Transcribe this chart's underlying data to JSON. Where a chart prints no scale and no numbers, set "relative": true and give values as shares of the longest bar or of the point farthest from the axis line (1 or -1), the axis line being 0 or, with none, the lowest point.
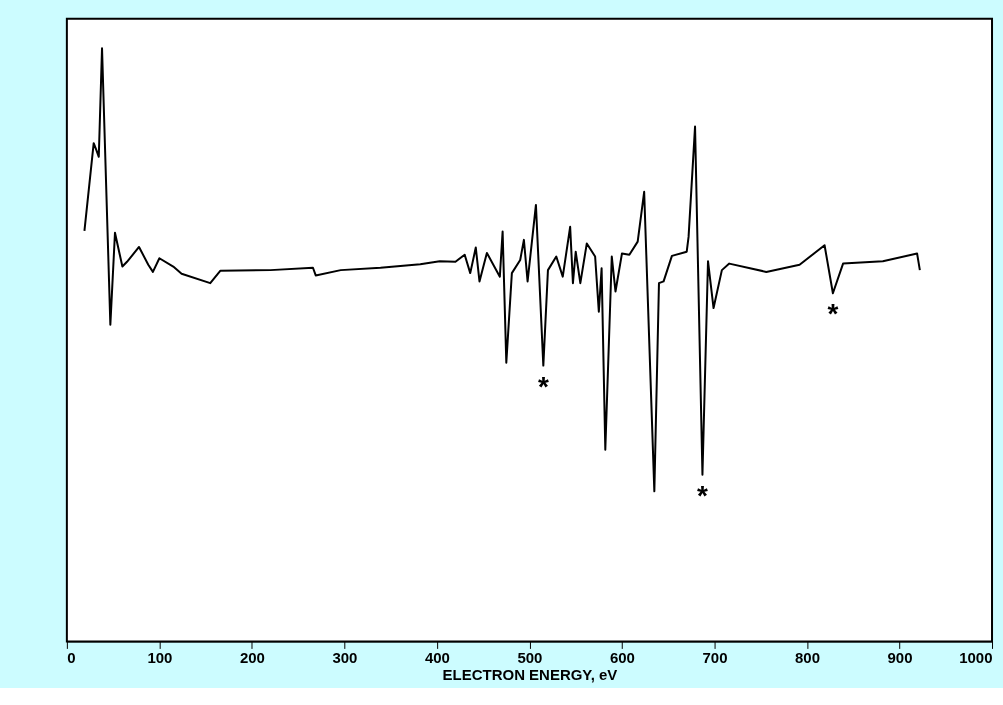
{
  "chart_data": {
    "type": "line",
    "relative": true,
    "xlabel": "ELECTRON ENERGY, eV",
    "xlim": [
      0,
      1000
    ],
    "xticks": [
      0,
      100,
      200,
      300,
      400,
      500,
      600,
      700,
      800,
      900,
      1000
    ],
    "grid": false,
    "marker": "none",
    "line_style": "solid",
    "series": [
      {
        "color": "#000000",
        "x": [
          19,
          29,
          32,
          34.5,
          38,
          47,
          52,
          60,
          65,
          78,
          88,
          93,
          100,
          115,
          124,
          155,
          166,
          220,
          266,
          269,
          296,
          339,
          382,
          403,
          420,
          430,
          436,
          442,
          446,
          454,
          468,
          471,
          475,
          481,
          490,
          494,
          498,
          507,
          515,
          520,
          529,
          536,
          544,
          547,
          550,
          555,
          562,
          571,
          575,
          578,
          582,
          589,
          593,
          600,
          608,
          617,
          624,
          635,
          640,
          645,
          654,
          670,
          672,
          679,
          687,
          693,
          699,
          708,
          716,
          756,
          792,
          819,
          828,
          839,
          882,
          919,
          922
        ],
        "values": [
          0.692,
          0.84,
          0.828,
          0.817,
          1.0,
          0.534,
          0.689,
          0.632,
          0.64,
          0.665,
          0.635,
          0.623,
          0.646,
          0.632,
          0.62,
          0.604,
          0.625,
          0.626,
          0.63,
          0.617,
          0.626,
          0.63,
          0.636,
          0.641,
          0.64,
          0.652,
          0.621,
          0.664,
          0.607,
          0.655,
          0.615,
          0.691,
          0.47,
          0.621,
          0.643,
          0.677,
          0.607,
          0.736,
          0.465,
          0.626,
          0.649,
          0.615,
          0.699,
          0.604,
          0.657,
          0.604,
          0.671,
          0.649,
          0.556,
          0.629,
          0.323,
          0.649,
          0.59,
          0.654,
          0.652,
          0.674,
          0.758,
          0.253,
          0.604,
          0.607,
          0.65,
          0.657,
          0.682,
          0.868,
          0.281,
          0.641,
          0.562,
          0.626,
          0.637,
          0.623,
          0.635,
          0.668,
          0.587,
          0.637,
          0.641,
          0.654,
          0.626
        ]
      }
    ],
    "annotations": [
      {
        "text": "*",
        "x": 515,
        "y": 0.465
      },
      {
        "text": "*",
        "x": 687,
        "y": 0.281
      },
      {
        "text": "*",
        "x": 828,
        "y": 0.587
      }
    ]
  }
}
